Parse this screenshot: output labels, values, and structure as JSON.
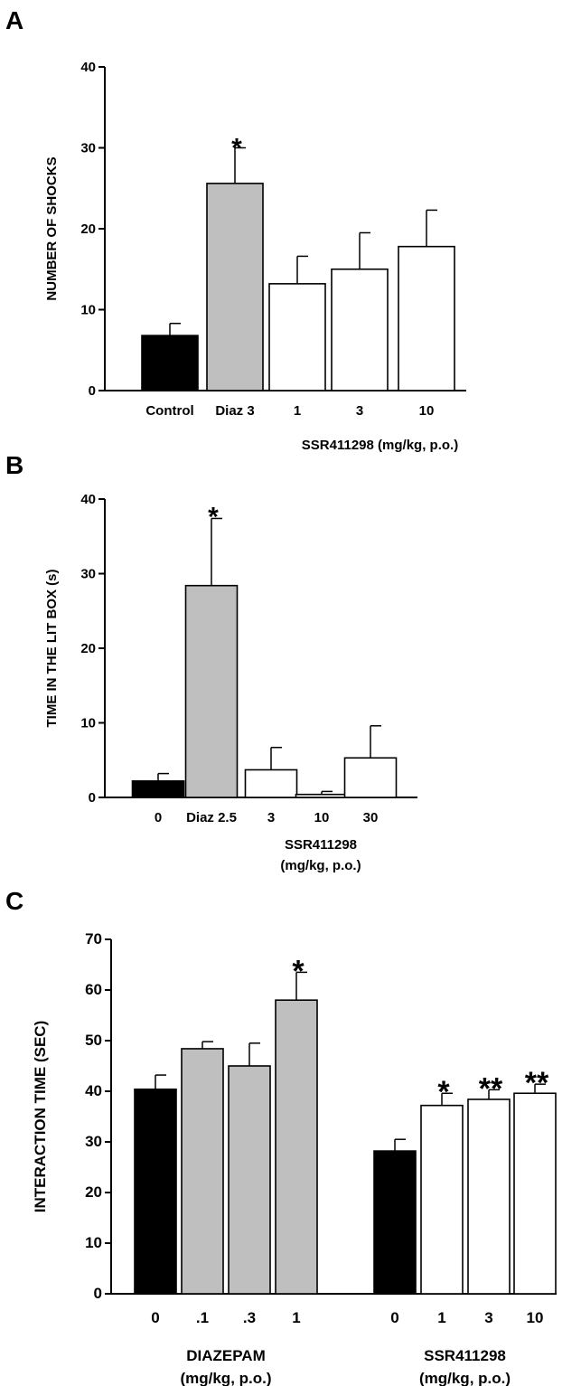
{
  "colors": {
    "control": "#000000",
    "reference": "#bfbfbf",
    "test": "#ffffff",
    "stroke": "#000000"
  },
  "chart_data": [
    {
      "panel": "A",
      "type": "bar",
      "ylabel": "NUMBER OF SHOCKS",
      "ylim": [
        0,
        40
      ],
      "yticks": [
        0,
        10,
        20,
        30,
        40
      ],
      "categories": [
        "Control",
        "Diaz 3",
        "1",
        "3",
        "10"
      ],
      "values": [
        6.8,
        25.6,
        13.2,
        15.0,
        17.8
      ],
      "errors": [
        1.5,
        4.4,
        3.4,
        4.5,
        4.5
      ],
      "fills": [
        "control",
        "reference",
        "test",
        "test",
        "test"
      ],
      "significance": [
        "",
        "*",
        "",
        "",
        ""
      ],
      "group_labels": [
        {
          "text": "SSR411298 (mg/kg, p.o.)",
          "under": [
            2,
            4
          ]
        }
      ]
    },
    {
      "panel": "B",
      "type": "bar",
      "ylabel": "TIME IN THE LIT BOX (s)",
      "ylim": [
        0,
        40
      ],
      "yticks": [
        0,
        10,
        20,
        30,
        40
      ],
      "categories": [
        "0",
        "Diaz 2.5",
        "3",
        "10",
        "30"
      ],
      "values": [
        2.2,
        28.4,
        3.7,
        0.4,
        5.3
      ],
      "errors": [
        1.0,
        9.0,
        3.0,
        0.4,
        4.3
      ],
      "fills": [
        "control",
        "reference",
        "test",
        "test",
        "test"
      ],
      "significance": [
        "",
        "*",
        "",
        "",
        ""
      ],
      "group_labels": [
        {
          "text": "SSR411298",
          "under": [
            2,
            4
          ]
        },
        {
          "text": "(mg/kg, p.o.)",
          "under": [
            2,
            4
          ]
        }
      ]
    },
    {
      "panel": "C",
      "type": "bar",
      "ylabel": "INTERACTION TIME (SEC)",
      "ylim": [
        0,
        70
      ],
      "yticks": [
        0,
        10,
        20,
        30,
        40,
        50,
        60,
        70
      ],
      "categories": [
        "0",
        ".1",
        ".3",
        "1",
        "0",
        "1",
        "3",
        "10"
      ],
      "values": [
        40.4,
        48.4,
        45.0,
        58.0,
        28.2,
        37.2,
        38.4,
        39.6
      ],
      "errors": [
        2.8,
        1.4,
        4.5,
        5.5,
        2.3,
        2.4,
        1.9,
        1.8
      ],
      "fills": [
        "control",
        "reference",
        "reference",
        "reference",
        "control",
        "test",
        "test",
        "test"
      ],
      "significance": [
        "",
        "",
        "",
        "*",
        "",
        "*",
        "**",
        "**"
      ],
      "group_labels": [
        {
          "text": "DIAZEPAM",
          "under": [
            0,
            3
          ]
        },
        {
          "text": "(mg/kg, p.o.)",
          "under": [
            0,
            3
          ]
        },
        {
          "text": "SSR411298",
          "under": [
            4,
            7
          ]
        },
        {
          "text": "(mg/kg, p.o.)",
          "under": [
            4,
            7
          ]
        }
      ]
    }
  ]
}
